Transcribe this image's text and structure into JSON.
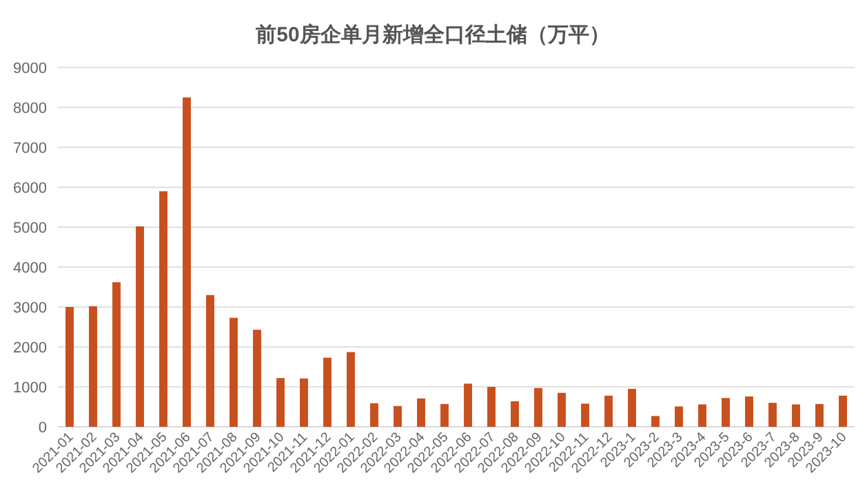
{
  "chart_data": {
    "type": "bar",
    "title": "前50房企单月新增全口径土储（万平）",
    "categories": [
      "2021-01",
      "2021-02",
      "2021-03",
      "2021-04",
      "2021-05",
      "2021-06",
      "2021-07",
      "2021-08",
      "2021-09",
      "2021-10",
      "2021-11",
      "2021-12",
      "2022-01",
      "2022-02",
      "2022-03",
      "2022-04",
      "2022-05",
      "2022-06",
      "2022-07",
      "2022-08",
      "2022-09",
      "2022-10",
      "2022-11",
      "2022-12",
      "2023-1",
      "2023-2",
      "2023-3",
      "2023-4",
      "2023-5",
      "2023-6",
      "2023-7",
      "2023-8",
      "2023-9",
      "2023-10"
    ],
    "values": [
      3000,
      3020,
      3620,
      5020,
      5900,
      8250,
      3300,
      2730,
      2430,
      1220,
      1210,
      1730,
      1870,
      590,
      520,
      710,
      570,
      1080,
      1000,
      640,
      970,
      850,
      580,
      780,
      950,
      270,
      510,
      560,
      720,
      760,
      600,
      560,
      570,
      780
    ],
    "color": "#c8501e",
    "ylim": [
      0,
      9000
    ],
    "yticks": [
      0,
      1000,
      2000,
      3000,
      4000,
      5000,
      6000,
      7000,
      8000,
      9000
    ],
    "grid": "y"
  }
}
